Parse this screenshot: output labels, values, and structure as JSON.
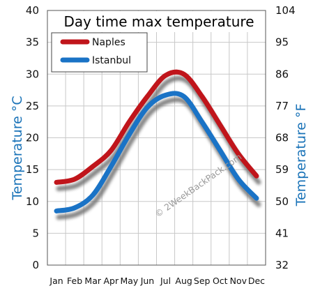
{
  "chart_data": {
    "type": "line",
    "title": "Day time max temperature",
    "categories": [
      "Jan",
      "Feb",
      "Mar",
      "Apr",
      "May",
      "Jun",
      "Jul",
      "Aug",
      "Sep",
      "Oct",
      "Nov",
      "Dec"
    ],
    "series": [
      {
        "name": "Naples",
        "values": [
          13,
          13.5,
          15.5,
          18,
          22.5,
          26.5,
          29.8,
          30,
          26.5,
          22,
          17.5,
          14
        ],
        "color": "#c0151b"
      },
      {
        "name": "Istanbul",
        "values": [
          8.5,
          9,
          11,
          15.5,
          20.5,
          24.8,
          26.7,
          26.5,
          22.5,
          18,
          13.5,
          10.5
        ],
        "color": "#1a73c6"
      }
    ],
    "ylabel_left": "Temperature °C",
    "ylabel_right": "Temperature °F",
    "ylim": [
      0,
      40
    ],
    "yticks_left": [
      "0",
      "5",
      "10",
      "15",
      "20",
      "25",
      "30",
      "35",
      "40"
    ],
    "yticks_right": [
      "32",
      "41",
      "50",
      "59",
      "68",
      "77",
      "86",
      "95",
      "104"
    ],
    "grid": true,
    "legend_position": "top-left",
    "watermark": "© 2WeekBackPack.com"
  }
}
